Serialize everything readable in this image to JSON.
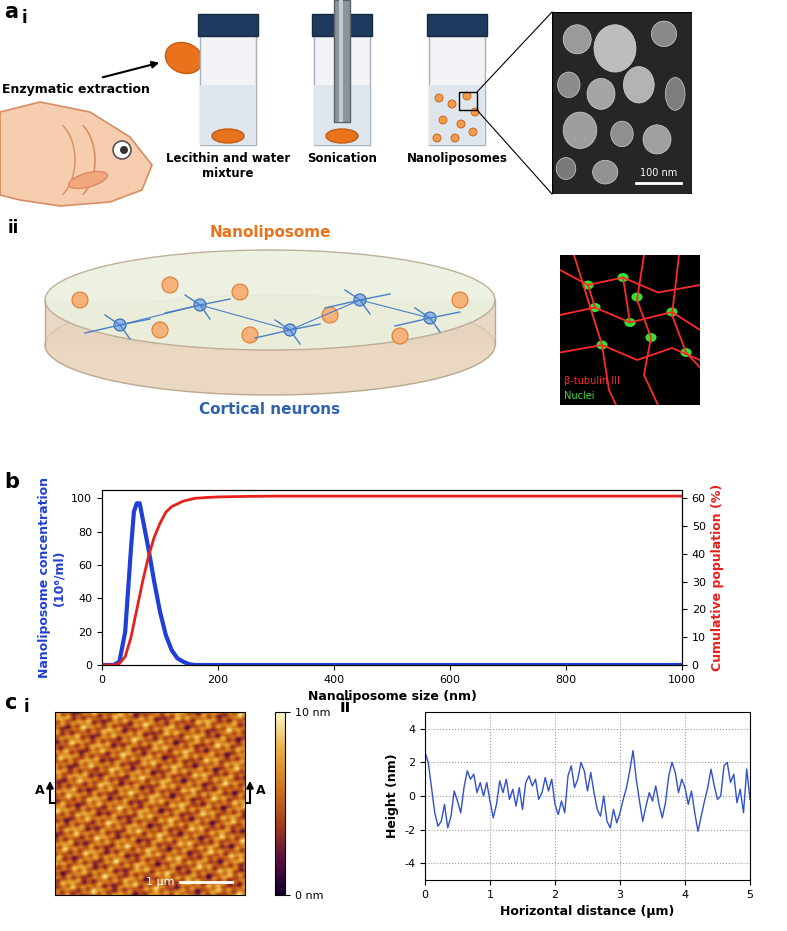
{
  "diagram": {
    "a": {
      "label": "a",
      "i": {
        "label": "i",
        "extraction": "Enzymatic extraction",
        "vials": [
          "Lecithin and water\nmixture",
          "Sonication",
          "Nanoliposomes"
        ],
        "scale_bar": "100 nm"
      },
      "ii": {
        "label": "ii",
        "particle": "Nanoliposome",
        "cells": "Cortical neurons",
        "stains": [
          {
            "label": "β-tubulin III",
            "color": "#ff2a2a"
          },
          {
            "label": "Nuclei",
            "color": "#33e033"
          }
        ]
      }
    },
    "b": {
      "label": "b"
    },
    "c": {
      "label": "c",
      "i": {
        "label": "i",
        "section_marks": [
          "A",
          "A"
        ],
        "scale_bar": "1 µm",
        "colorbar": {
          "range": [
            0,
            10
          ],
          "ticks": [
            {
              "value": 0,
              "label": "0 nm"
            },
            {
              "value": 10,
              "label": "10 nm"
            }
          ]
        }
      },
      "ii": {
        "label": "ii"
      }
    }
  },
  "chart_data": [
    {
      "type": "line",
      "x_label": "Nanoliposome size (nm)",
      "y_label": "Nanoliposome concentration\n(10⁶/ml)",
      "y2_label": "Cumulative population (%)",
      "xlim": [
        0,
        1000
      ],
      "xticks": [
        0,
        200,
        400,
        600,
        800,
        1000
      ],
      "ylim": [
        0,
        105
      ],
      "yticks": [
        0,
        20,
        40,
        60,
        80,
        100
      ],
      "y2lim": [
        0,
        63
      ],
      "y2ticks": [
        0,
        10,
        20,
        30,
        40,
        50,
        60
      ],
      "series": [
        {
          "color": "#1f3fd6",
          "x": [
            0,
            20,
            30,
            40,
            50,
            55,
            60,
            65,
            70,
            80,
            90,
            100,
            110,
            120,
            130,
            140,
            150,
            160,
            200,
            1000
          ],
          "values": [
            0,
            0,
            2,
            20,
            70,
            92,
            97,
            97,
            88,
            70,
            50,
            32,
            18,
            9,
            4,
            2,
            0.5,
            0,
            0,
            0
          ]
        },
        {
          "color": "#e8201c",
          "axis": "y2",
          "x": [
            0,
            20,
            30,
            40,
            50,
            60,
            70,
            80,
            90,
            100,
            110,
            120,
            140,
            160,
            180,
            200,
            250,
            300,
            400,
            1000
          ],
          "values": [
            0,
            0,
            0.5,
            3,
            10,
            20,
            30,
            39,
            46,
            51,
            55,
            57,
            59,
            60,
            60.3,
            60.5,
            60.7,
            60.8,
            60.8,
            60.8
          ]
        }
      ]
    },
    {
      "type": "line",
      "x_label": "Horizontal distance (µm)",
      "y_label": "Height (nm)",
      "xlim": [
        0,
        5
      ],
      "xticks": [
        0,
        1,
        2,
        3,
        4,
        5
      ],
      "ylim": [
        -5,
        5
      ],
      "yticks": [
        -4,
        -2,
        0,
        2,
        4
      ],
      "grid": true,
      "color": "#3050d0",
      "x": [
        0,
        0.05,
        0.1,
        0.15,
        0.2,
        0.25,
        0.3,
        0.35,
        0.4,
        0.45,
        0.5,
        0.55,
        0.6,
        0.65,
        0.7,
        0.75,
        0.8,
        0.85,
        0.9,
        0.95,
        1.0,
        1.05,
        1.1,
        1.15,
        1.2,
        1.25,
        1.3,
        1.35,
        1.4,
        1.45,
        1.5,
        1.55,
        1.6,
        1.65,
        1.7,
        1.75,
        1.8,
        1.85,
        1.9,
        1.95,
        2.0,
        2.05,
        2.1,
        2.15,
        2.2,
        2.25,
        2.3,
        2.35,
        2.4,
        2.45,
        2.5,
        2.55,
        2.6,
        2.65,
        2.7,
        2.75,
        2.8,
        2.85,
        2.9,
        2.95,
        3.0,
        3.05,
        3.1,
        3.15,
        3.2,
        3.25,
        3.3,
        3.35,
        3.4,
        3.45,
        3.5,
        3.55,
        3.6,
        3.65,
        3.7,
        3.75,
        3.8,
        3.85,
        3.9,
        3.95,
        4.0,
        4.05,
        4.1,
        4.15,
        4.2,
        4.25,
        4.3,
        4.35,
        4.4,
        4.45,
        4.5,
        4.55,
        4.6,
        4.65,
        4.7,
        4.75,
        4.8,
        4.85,
        4.9,
        4.95,
        5.0
      ],
      "values": [
        2.6,
        2.0,
        0.5,
        -1.0,
        -1.8,
        -1.5,
        -0.5,
        -1.9,
        -1.2,
        0.3,
        -0.3,
        -1.0,
        0.5,
        1.5,
        1.0,
        1.3,
        0.2,
        0.8,
        0.0,
        0.8,
        -0.3,
        -1.3,
        -0.5,
        0.9,
        0.2,
        1.0,
        -0.2,
        0.4,
        -0.6,
        0.5,
        -0.8,
        0.8,
        1.2,
        0.6,
        1.0,
        -0.2,
        0.2,
        1.1,
        0.3,
        1.0,
        -0.5,
        -1.1,
        -0.3,
        -1.0,
        1.2,
        1.8,
        0.5,
        1.0,
        2.0,
        1.5,
        0.3,
        1.4,
        0.2,
        -0.8,
        -1.2,
        0.0,
        -1.5,
        -1.9,
        -0.8,
        -1.6,
        -1.0,
        -0.2,
        0.5,
        1.5,
        2.7,
        1.0,
        -0.3,
        -1.5,
        -0.6,
        0.2,
        -0.3,
        0.6,
        -0.5,
        -1.3,
        -0.4,
        1.2,
        2.0,
        1.4,
        0.2,
        1.0,
        0.5,
        -0.5,
        0.3,
        -1.0,
        -2.1,
        -1.2,
        -0.3,
        0.5,
        1.6,
        0.6,
        -0.2,
        0.0,
        1.8,
        2.0,
        0.8,
        1.3,
        -0.4,
        0.4,
        -1.0,
        1.6,
        -0.2
      ]
    }
  ]
}
